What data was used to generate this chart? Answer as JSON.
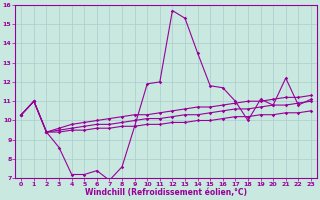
{
  "x": [
    0,
    1,
    2,
    3,
    4,
    5,
    6,
    7,
    8,
    9,
    10,
    11,
    12,
    13,
    14,
    15,
    16,
    17,
    18,
    19,
    20,
    21,
    22,
    23
  ],
  "line1": [
    10.3,
    11.0,
    9.4,
    8.6,
    7.2,
    7.2,
    7.4,
    6.9,
    7.6,
    9.7,
    11.9,
    12.0,
    15.7,
    15.3,
    13.5,
    11.8,
    11.7,
    11.0,
    10.0,
    11.1,
    10.8,
    12.2,
    10.8,
    11.1
  ],
  "line2": [
    10.3,
    11.0,
    9.4,
    9.4,
    9.5,
    9.5,
    9.6,
    9.6,
    9.7,
    9.7,
    9.8,
    9.8,
    9.9,
    9.9,
    10.0,
    10.0,
    10.1,
    10.2,
    10.2,
    10.3,
    10.3,
    10.4,
    10.4,
    10.5
  ],
  "line3": [
    10.3,
    11.0,
    9.4,
    9.5,
    9.6,
    9.7,
    9.8,
    9.8,
    9.9,
    10.0,
    10.1,
    10.1,
    10.2,
    10.3,
    10.3,
    10.4,
    10.5,
    10.6,
    10.6,
    10.7,
    10.8,
    10.8,
    10.9,
    11.0
  ],
  "line4": [
    10.3,
    11.0,
    9.4,
    9.6,
    9.8,
    9.9,
    10.0,
    10.1,
    10.2,
    10.3,
    10.3,
    10.4,
    10.5,
    10.6,
    10.7,
    10.7,
    10.8,
    10.9,
    11.0,
    11.0,
    11.1,
    11.2,
    11.2,
    11.3
  ],
  "line_color": "#990099",
  "bg_color": "#c8e8e0",
  "grid_color": "#b0d8d0",
  "xlabel": "Windchill (Refroidissement éolien,°C)",
  "ylim": [
    7,
    16
  ],
  "xlim": [
    -0.5,
    23.5
  ],
  "yticks": [
    7,
    8,
    9,
    10,
    11,
    12,
    13,
    14,
    15,
    16
  ],
  "xticks": [
    0,
    1,
    2,
    3,
    4,
    5,
    6,
    7,
    8,
    9,
    10,
    11,
    12,
    13,
    14,
    15,
    16,
    17,
    18,
    19,
    20,
    21,
    22,
    23
  ]
}
